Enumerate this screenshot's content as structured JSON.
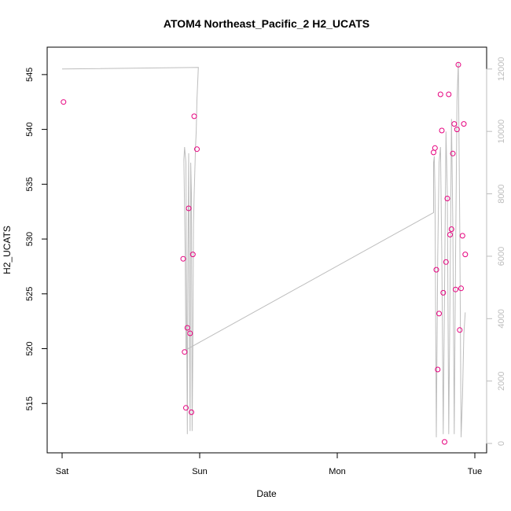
{
  "chart_data": {
    "type": "scatter",
    "title": "ATOM4 Northeast_Pacific_2 H2_UCATS",
    "xlabel": "Date",
    "ylabel": "H2_UCATS",
    "x_ticks": [
      "Sat",
      "Sun",
      "Mon",
      "Tue"
    ],
    "x_range_days": [
      0,
      3
    ],
    "ylim": [
      510.5,
      547.5
    ],
    "y_ticks": [
      515,
      520,
      525,
      530,
      535,
      540,
      545
    ],
    "y2lim": [
      -300,
      12700
    ],
    "y2_ticks": [
      0,
      2000,
      4000,
      6000,
      8000,
      10000,
      12000
    ],
    "grid": false,
    "series": [
      {
        "marker": "open-circle",
        "color": "#e6007e",
        "axis": "left",
        "points": [
          [
            0.01,
            542.5
          ],
          [
            0.88,
            528.2
          ],
          [
            0.89,
            519.7
          ],
          [
            0.9,
            514.6
          ],
          [
            0.91,
            521.9
          ],
          [
            0.92,
            532.8
          ],
          [
            0.93,
            521.4
          ],
          [
            0.94,
            514.2
          ],
          [
            0.95,
            528.6
          ],
          [
            0.96,
            541.2
          ],
          [
            0.98,
            538.2
          ],
          [
            2.7,
            537.9
          ],
          [
            2.71,
            538.3
          ],
          [
            2.72,
            527.2
          ],
          [
            2.73,
            518.1
          ],
          [
            2.74,
            523.2
          ],
          [
            2.75,
            543.2
          ],
          [
            2.76,
            539.9
          ],
          [
            2.77,
            525.1
          ],
          [
            2.78,
            511.5
          ],
          [
            2.79,
            527.9
          ],
          [
            2.8,
            533.7
          ],
          [
            2.81,
            543.2
          ],
          [
            2.82,
            530.4
          ],
          [
            2.83,
            530.9
          ],
          [
            2.84,
            537.8
          ],
          [
            2.85,
            540.5
          ],
          [
            2.86,
            525.4
          ],
          [
            2.87,
            540.0
          ],
          [
            2.88,
            545.9
          ],
          [
            2.89,
            521.7
          ],
          [
            2.9,
            525.5
          ],
          [
            2.91,
            530.3
          ],
          [
            2.92,
            540.5
          ],
          [
            2.93,
            528.6
          ]
        ]
      },
      {
        "marker": "line",
        "color": "#bdbdbd",
        "axis": "right",
        "points": [
          [
            0.0,
            12000
          ],
          [
            0.99,
            12050
          ],
          [
            0.98,
            11000
          ],
          [
            0.975,
            10000
          ],
          [
            0.97,
            9500
          ],
          [
            0.96,
            8000
          ],
          [
            0.955,
            7000
          ],
          [
            0.95,
            3000
          ],
          [
            0.945,
            400
          ],
          [
            0.94,
            8000
          ],
          [
            0.935,
            9000
          ],
          [
            0.93,
            400
          ],
          [
            0.925,
            4500
          ],
          [
            0.92,
            9300
          ],
          [
            0.915,
            6000
          ],
          [
            0.91,
            300
          ],
          [
            0.905,
            4000
          ],
          [
            0.9,
            9000
          ],
          [
            0.89,
            9500
          ],
          [
            0.885,
            9100
          ],
          [
            0.895,
            6000
          ],
          [
            0.9,
            3000
          ],
          [
            2.7,
            7400
          ],
          [
            2.7,
            9000
          ],
          [
            2.705,
            9200
          ],
          [
            2.71,
            8000
          ],
          [
            2.72,
            200
          ],
          [
            2.73,
            6000
          ],
          [
            2.74,
            9000
          ],
          [
            2.75,
            9500
          ],
          [
            2.76,
            6000
          ],
          [
            2.77,
            300
          ],
          [
            2.78,
            5000
          ],
          [
            2.79,
            10000
          ],
          [
            2.8,
            8000
          ],
          [
            2.81,
            300
          ],
          [
            2.82,
            5000
          ],
          [
            2.83,
            10400
          ],
          [
            2.84,
            7000
          ],
          [
            2.85,
            300
          ],
          [
            2.86,
            6000
          ],
          [
            2.87,
            11000
          ],
          [
            2.88,
            12200
          ],
          [
            2.89,
            7000
          ],
          [
            2.9,
            200
          ],
          [
            2.91,
            1500
          ],
          [
            2.92,
            3500
          ],
          [
            2.93,
            4200
          ]
        ]
      }
    ]
  }
}
